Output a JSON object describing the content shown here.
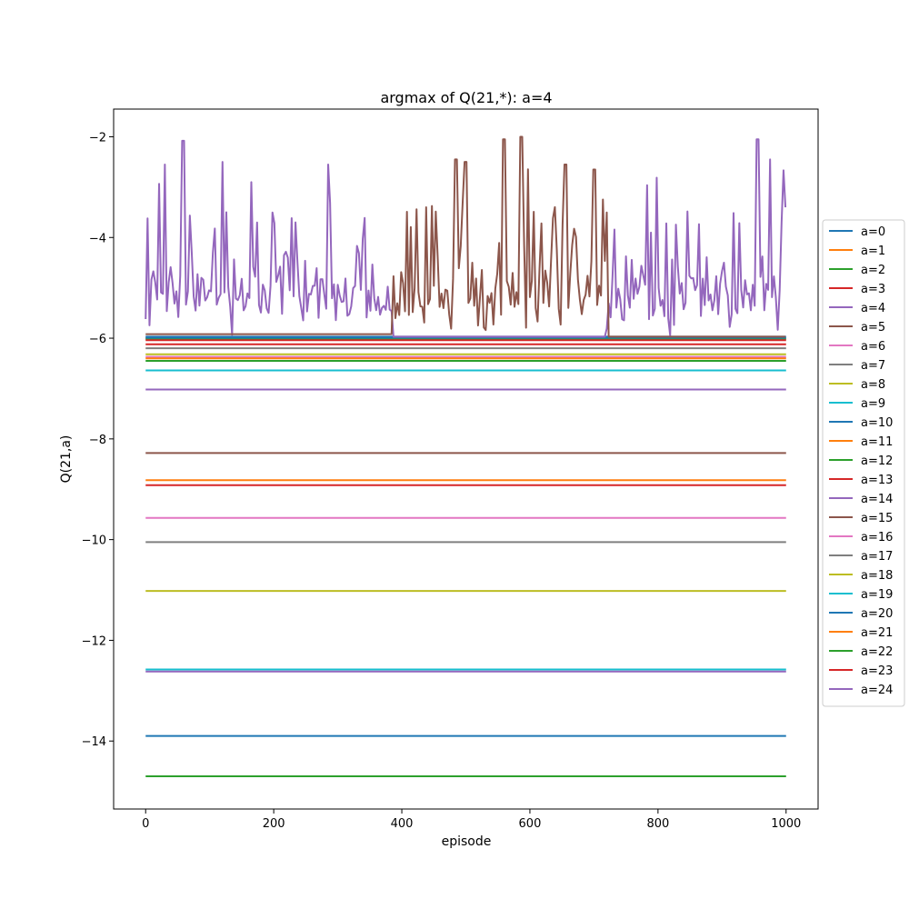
{
  "chart_data": {
    "type": "line",
    "title": "argmax of Q(21,*): a=4",
    "xlabel": "episode",
    "ylabel": "Q(21,a)",
    "xlim": [
      -50,
      1050
    ],
    "ylim": [
      -15.35,
      -1.45
    ],
    "xticks": [
      0,
      200,
      400,
      600,
      800,
      1000
    ],
    "yticks": [
      -14,
      -12,
      -10,
      -8,
      -6,
      -4,
      -2
    ],
    "grid": false,
    "legend_position": "center-right outside",
    "n_episodes": 1000,
    "series": [
      {
        "name": "a=0",
        "color": "#1f77b4",
        "constant": -5.97
      },
      {
        "name": "a=1",
        "color": "#ff7f0e",
        "constant": -6.0
      },
      {
        "name": "a=2",
        "color": "#2ca02c",
        "constant": -6.02
      },
      {
        "name": "a=3",
        "color": "#d62728",
        "constant": -6.04
      },
      {
        "name": "a=4",
        "color": "#9467bd",
        "noisy": true,
        "base": -5.1,
        "min": -5.95,
        "max": -2.05,
        "active_ranges": [
          [
            0,
            385
          ],
          [
            720,
            1000
          ]
        ],
        "end_value": -3.4,
        "peaks": [
          [
            58,
            -2.08
          ],
          [
            120,
            -2.5
          ],
          [
            285,
            -2.55
          ],
          [
            955,
            -2.05
          ],
          [
            975,
            -2.45
          ],
          [
            165,
            -2.9
          ],
          [
            30,
            -2.55
          ]
        ]
      },
      {
        "name": "a=5",
        "color": "#8c564b",
        "noisy": true,
        "base": -5.0,
        "min": -5.95,
        "max": -2.0,
        "start_value": -5.92,
        "flat_until": 385,
        "active_ranges": [
          [
            385,
            720
          ]
        ],
        "peaks": [
          [
            586,
            -2.0
          ],
          [
            560,
            -2.05
          ],
          [
            485,
            -2.45
          ],
          [
            500,
            -2.5
          ],
          [
            655,
            -2.55
          ],
          [
            700,
            -2.65
          ]
        ]
      },
      {
        "name": "a=6",
        "color": "#e377c2",
        "constant": -6.37
      },
      {
        "name": "a=7",
        "color": "#7f7f7f",
        "constant": -6.2
      },
      {
        "name": "a=8",
        "color": "#bcbd22",
        "constant": -6.32
      },
      {
        "name": "a=9",
        "color": "#17becf",
        "constant": -6.64
      },
      {
        "name": "a=10",
        "color": "#1f77b4",
        "constant": -5.99
      },
      {
        "name": "a=11",
        "color": "#ff7f0e",
        "constant": -6.4
      },
      {
        "name": "a=12",
        "color": "#2ca02c",
        "constant": -6.45
      },
      {
        "name": "a=13",
        "color": "#d62728",
        "constant": -6.12
      },
      {
        "name": "a=14",
        "color": "#9467bd",
        "constant": -7.02
      },
      {
        "name": "a=15",
        "color": "#8c564b",
        "constant": -8.28
      },
      {
        "name": "a=16",
        "color": "#e377c2",
        "constant": -9.57
      },
      {
        "name": "a=17",
        "color": "#7f7f7f",
        "constant": -10.05
      },
      {
        "name": "a=18",
        "color": "#bcbd22",
        "constant": -11.02
      },
      {
        "name": "a=19",
        "color": "#17becf",
        "constant": -12.58
      },
      {
        "name": "a=20",
        "color": "#1f77b4",
        "constant": -13.9
      },
      {
        "name": "a=21",
        "color": "#ff7f0e",
        "constant": -8.82
      },
      {
        "name": "a=22",
        "color": "#2ca02c",
        "constant": -14.7
      },
      {
        "name": "a=23",
        "color": "#d62728",
        "constant": -8.92
      },
      {
        "name": "a=24",
        "color": "#9467bd",
        "constant": -12.62
      }
    ]
  }
}
